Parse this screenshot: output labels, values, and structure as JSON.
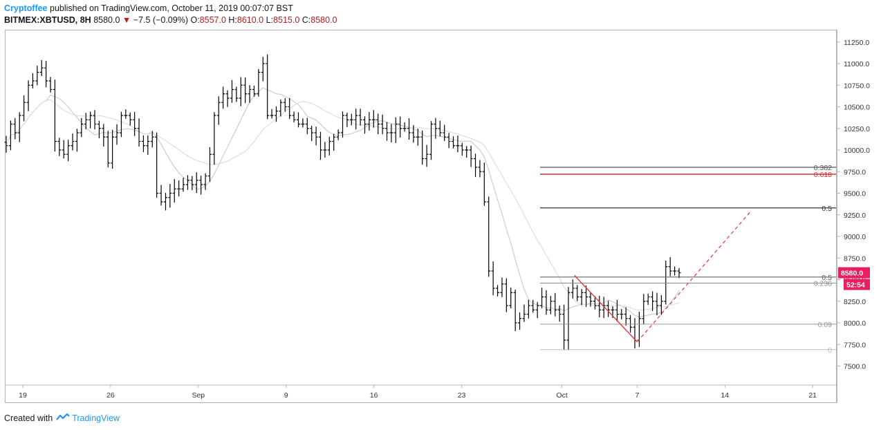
{
  "header": {
    "author": "Cryptoffee",
    "published": "published on TradingView.com, October 11, 2019 00:07:07 BST",
    "symbol": "BITMEX:XBTUSD, 8H",
    "last": "8580.0",
    "change": "−7.5 (−0.09%)",
    "o_label": "O:",
    "o_value": "8557.0",
    "h_label": "H:",
    "h_value": "8610.0",
    "l_label": "L:",
    "l_value": "8515.0",
    "c_label": "C:",
    "c_value": "8580.0"
  },
  "footer": {
    "created_with": "Created with",
    "brand": "TradingView"
  },
  "price_tag": {
    "price": "8580.0",
    "countdown": "52:54",
    "color": "#e91e63"
  },
  "chart_data": {
    "type": "ohlc",
    "symbol": "BITMEX:XBTUSD",
    "interval": "8H",
    "y_ticks": [
      7500,
      7750,
      8000,
      8250,
      8500,
      8750,
      9000,
      9250,
      9500,
      9750,
      10000,
      10250,
      10500,
      10750,
      11000,
      11250
    ],
    "y_tick_labels": [
      "7500.0",
      "7750.0",
      "8000.0",
      "8250.0",
      "8500.0",
      "8750.0",
      "9000.0",
      "9250.0",
      "9500.0",
      "9750.0",
      "10000.0",
      "10250.0",
      "10500.0",
      "10750.0",
      "11000.0",
      "11250.0"
    ],
    "ylim": [
      7380,
      11400
    ],
    "x_ticks": [
      "19",
      "26",
      "Sep",
      "9",
      "16",
      "23",
      "Oct",
      "7",
      "14",
      "21"
    ],
    "x_tick_dates": [
      "2019-08-19",
      "2019-08-26",
      "2019-09-02",
      "2019-09-09",
      "2019-09-16",
      "2019-09-23",
      "2019-10-01",
      "2019-10-07",
      "2019-10-14",
      "2019-10-21"
    ],
    "closes": [
      10050,
      10300,
      10200,
      10400,
      10550,
      10750,
      10800,
      10900,
      10950,
      10800,
      10700,
      10100,
      10000,
      9950,
      10050,
      10100,
      10200,
      10300,
      10350,
      10400,
      10300,
      10250,
      10150,
      9850,
      10150,
      10200,
      10400,
      10400,
      10350,
      10250,
      10100,
      10050,
      10100,
      10150,
      9500,
      9400,
      9450,
      9500,
      9550,
      9550,
      9600,
      9650,
      9600,
      9650,
      9600,
      9700,
      9950,
      10400,
      10550,
      10650,
      10600,
      10700,
      10600,
      10750,
      10650,
      10700,
      10650,
      10900,
      11000,
      10400,
      10400,
      10450,
      10550,
      10500,
      10400,
      10350,
      10300,
      10300,
      10250,
      10200,
      10150,
      10000,
      10000,
      10100,
      10150,
      10200,
      10400,
      10350,
      10350,
      10400,
      10350,
      10300,
      10350,
      10350,
      10300,
      10250,
      10200,
      10200,
      10300,
      10250,
      10250,
      10200,
      10150,
      10150,
      9900,
      9950,
      10300,
      10250,
      10200,
      10150,
      10100,
      10050,
      10050,
      10000,
      10000,
      9900,
      9800,
      9750,
      9400,
      8600,
      8400,
      8350,
      8450,
      8200,
      8350,
      8000,
      8050,
      8100,
      8200,
      8150,
      8200,
      8300,
      8150,
      8250,
      8150,
      8100,
      7800,
      8350,
      8400,
      8300,
      8350,
      8300,
      8250,
      8200,
      8150,
      8200,
      8150,
      8150,
      8100,
      8100,
      8050,
      7950,
      7800,
      8050,
      8250,
      8300,
      8250,
      8200,
      8250,
      8650,
      8600,
      8600,
      8580
    ],
    "moving_averages": [
      {
        "name": "MA fast",
        "color": "#cccccc"
      },
      {
        "name": "MA slow",
        "color": "#dddddd"
      }
    ],
    "fib_upper": {
      "levels": [
        {
          "label": "0.382",
          "price": 9800,
          "color": "#555555"
        },
        {
          "label": "0.618",
          "price": 9720,
          "color": "#d32f2f"
        },
        {
          "label": "0.5",
          "price": 9330,
          "color": "#333333"
        }
      ]
    },
    "fib_lower": {
      "levels": [
        {
          "label": "0.5",
          "price": 8530,
          "color": "#555555"
        },
        {
          "label": "0.236",
          "price": 8460,
          "color": "#888888"
        },
        {
          "label": "0.09",
          "price": 7985,
          "color": "#999999"
        },
        {
          "label": "0",
          "price": 7690,
          "color": "#bbbbbb"
        }
      ]
    },
    "drawings": {
      "down_leg": {
        "from": {
          "date": "2019-10-01",
          "price": 8550
        },
        "to": {
          "date": "2019-10-07",
          "price": 7780
        },
        "color": "#e53935"
      },
      "projection": {
        "from": {
          "date": "2019-10-07",
          "price": 7780
        },
        "to": {
          "date": "2019-10-16",
          "price": 9280
        },
        "color": "#e53935"
      }
    }
  }
}
